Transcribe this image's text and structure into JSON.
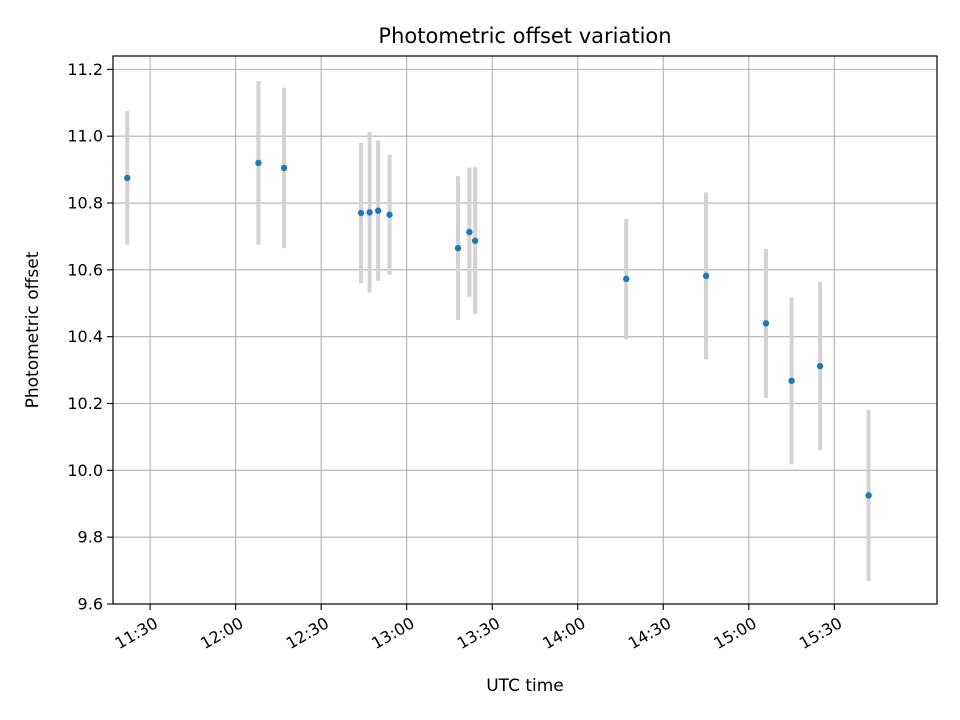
{
  "chart_data": {
    "type": "scatter",
    "title": "Photometric offset variation",
    "xlabel": "UTC time",
    "ylabel": "Photometric offset",
    "xlim": [
      "11:17",
      "16:06"
    ],
    "ylim": [
      9.6,
      11.24
    ],
    "xticks": [
      "11:30",
      "12:00",
      "12:30",
      "13:00",
      "13:30",
      "14:00",
      "14:30",
      "15:00",
      "15:30"
    ],
    "yticks": [
      9.6,
      9.8,
      10.0,
      10.2,
      10.4,
      10.6,
      10.8,
      11.0,
      11.2
    ],
    "grid": true,
    "marker_color": "#1f77b4",
    "errorbar_color": "#d3d3d3",
    "series": [
      {
        "points": [
          {
            "x": "11:22",
            "y": 10.875,
            "yerr": 0.2
          },
          {
            "x": "12:08",
            "y": 10.92,
            "yerr": 0.245
          },
          {
            "x": "12:17",
            "y": 10.905,
            "yerr": 0.24
          },
          {
            "x": "12:44",
            "y": 10.77,
            "yerr": 0.21
          },
          {
            "x": "12:47",
            "y": 10.772,
            "yerr": 0.24
          },
          {
            "x": "12:50",
            "y": 10.777,
            "yerr": 0.21
          },
          {
            "x": "12:54",
            "y": 10.765,
            "yerr": 0.18
          },
          {
            "x": "13:18",
            "y": 10.665,
            "yerr": 0.215
          },
          {
            "x": "13:22",
            "y": 10.713,
            "yerr": 0.193
          },
          {
            "x": "13:24",
            "y": 10.687,
            "yerr": 0.22
          },
          {
            "x": "14:17",
            "y": 10.573,
            "yerr": 0.18
          },
          {
            "x": "14:45",
            "y": 10.582,
            "yerr": 0.25
          },
          {
            "x": "15:06",
            "y": 10.44,
            "yerr": 0.223
          },
          {
            "x": "15:15",
            "y": 10.268,
            "yerr": 0.25
          },
          {
            "x": "15:25",
            "y": 10.312,
            "yerr": 0.252
          },
          {
            "x": "15:42",
            "y": 9.925,
            "yerr": 0.256
          }
        ]
      }
    ]
  }
}
